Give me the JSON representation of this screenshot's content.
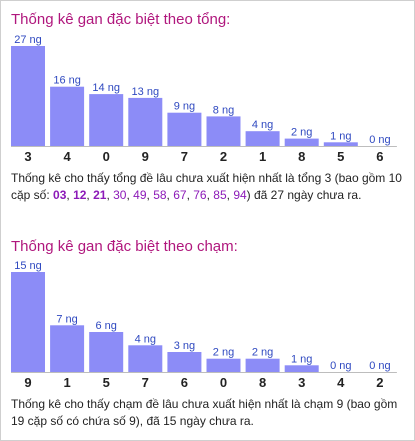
{
  "sum_section": {
    "title": "Thống kê gan đặc biệt theo tổng:",
    "desc_prefix": "Thống kê cho thấy tổng đề lâu chưa xuất hiện nhất là tổng 3 (bao gồm 10 cặp số: ",
    "pairs": [
      "03",
      "12",
      "21",
      "30",
      "49",
      "58",
      "67",
      "76",
      "85",
      "94"
    ],
    "desc_suffix": ") đã 27 ngày chưa ra."
  },
  "touch_section": {
    "title": "Thống kê gan đặc biệt theo chạm:",
    "desc": "Thống kê cho thấy chạm đề lâu chưa xuất hiện nhất là chạm 9 (bao gồm 19 cặp số có chứa số 9), đã 15 ngày chưa ra."
  },
  "colors": {
    "bar": "#8c8cf7",
    "title": "#b0177d",
    "label": "#2f49c0",
    "highlight": "#8c1ab8"
  },
  "chart_data": [
    {
      "type": "bar",
      "title": "Thống kê gan đặc biệt theo tổng:",
      "categories": [
        "3",
        "4",
        "0",
        "9",
        "7",
        "2",
        "1",
        "8",
        "5",
        "6"
      ],
      "values": [
        27,
        16,
        14,
        13,
        9,
        8,
        4,
        2,
        1,
        0
      ],
      "data_labels": [
        "27 ng",
        "16 ng",
        "14 ng",
        "13 ng",
        "9 ng",
        "8 ng",
        "4 ng",
        "2 ng",
        "1 ng",
        "0 ng"
      ],
      "xlabel": "",
      "ylabel": "",
      "ylim": [
        0,
        27
      ]
    },
    {
      "type": "bar",
      "title": "Thống kê gan đặc biệt theo chạm:",
      "categories": [
        "9",
        "1",
        "5",
        "7",
        "6",
        "0",
        "8",
        "3",
        "4",
        "2"
      ],
      "values": [
        15,
        7,
        6,
        4,
        3,
        2,
        2,
        1,
        0,
        0
      ],
      "data_labels": [
        "15 ng",
        "7 ng",
        "6 ng",
        "4 ng",
        "3 ng",
        "2 ng",
        "2 ng",
        "1 ng",
        "0 ng",
        "0 ng"
      ],
      "xlabel": "",
      "ylabel": "",
      "ylim": [
        0,
        15
      ]
    }
  ]
}
